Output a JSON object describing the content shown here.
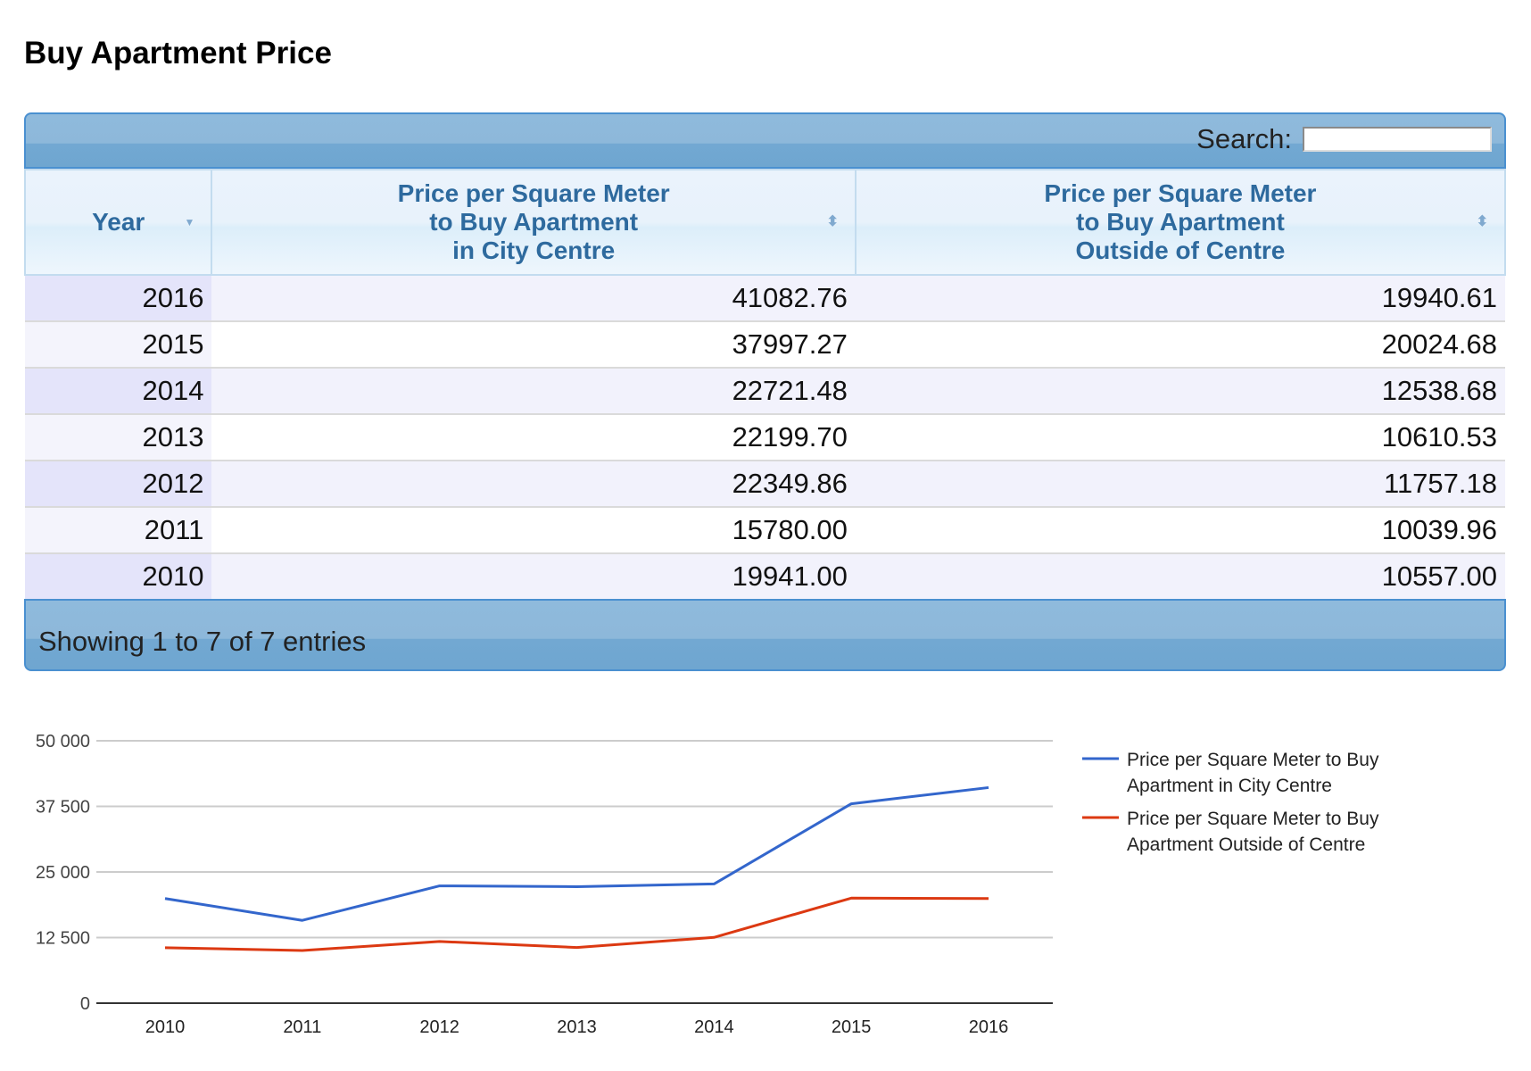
{
  "page": {
    "title": "Buy Apartment Price"
  },
  "table": {
    "search_label": "Search:",
    "search_value": "",
    "columns": [
      {
        "label_lines": [
          "Year"
        ],
        "sort": "desc"
      },
      {
        "label_lines": [
          "Price per Square Meter",
          "to Buy Apartment",
          "in City Centre"
        ],
        "sort": "none"
      },
      {
        "label_lines": [
          "Price per Square Meter",
          "to Buy Apartment",
          "Outside of Centre"
        ],
        "sort": "none"
      }
    ],
    "rows": [
      [
        "2016",
        "41082.76",
        "19940.61"
      ],
      [
        "2015",
        "37997.27",
        "20024.68"
      ],
      [
        "2014",
        "22721.48",
        "12538.68"
      ],
      [
        "2013",
        "22199.70",
        "10610.53"
      ],
      [
        "2012",
        "22349.86",
        "11757.18"
      ],
      [
        "2011",
        "15780.00",
        "10039.96"
      ],
      [
        "2010",
        "19941.00",
        "10557.00"
      ]
    ],
    "info": "Showing 1 to 7 of 7 entries",
    "colors": {
      "header_text": "#2e6a9e",
      "bar": "#7fb0d8"
    }
  },
  "chart_data": {
    "type": "line",
    "title": "",
    "xlabel": "",
    "ylabel": "",
    "x": [
      "2010",
      "2011",
      "2012",
      "2013",
      "2014",
      "2015",
      "2016"
    ],
    "ylim": [
      0,
      50000
    ],
    "yticks": [
      0,
      12500,
      25000,
      37500,
      50000
    ],
    "ytick_labels": [
      "0",
      "12 500",
      "25 000",
      "37 500",
      "50 000"
    ],
    "grid": true,
    "legend_position": "right",
    "series": [
      {
        "name": "Price per Square Meter to Buy Apartment in City Centre",
        "legend_lines": [
          "Price per Square Meter to Buy",
          "Apartment in City Centre"
        ],
        "color": "#3366cc",
        "values": [
          19941.0,
          15780.0,
          22349.86,
          22199.7,
          22721.48,
          37997.27,
          41082.76
        ]
      },
      {
        "name": "Price per Square Meter to Buy Apartment Outside of Centre",
        "legend_lines": [
          "Price per Square Meter to Buy",
          "Apartment Outside of Centre"
        ],
        "color": "#dc3912",
        "values": [
          10557.0,
          10039.96,
          11757.18,
          10610.53,
          12538.68,
          20024.68,
          19940.61
        ]
      }
    ]
  }
}
